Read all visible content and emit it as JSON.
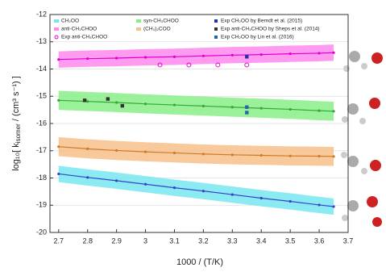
{
  "chart_data": {
    "type": "line",
    "x_label": "1000 / (T/K)",
    "y_label": [
      "log₁₀[ k",
      "isomer",
      " / (cm³ s⁻¹) ]"
    ],
    "xlim": [
      2.67,
      3.7
    ],
    "xticks": [
      2.7,
      2.8,
      2.9,
      3.0,
      3.1,
      3.2,
      3.3,
      3.4,
      3.5,
      3.6,
      3.7
    ],
    "ylim": [
      -20,
      -12
    ],
    "yticks": [
      -12,
      -13,
      -14,
      -15,
      -16,
      -17,
      -18,
      -19,
      -20
    ],
    "grid": true,
    "x": [
      2.7,
      2.8,
      2.9,
      3.0,
      3.1,
      3.2,
      3.3,
      3.4,
      3.5,
      3.6,
      3.65
    ],
    "series": [
      {
        "name": "CH₂OO",
        "color": "#3344cc",
        "band_color": "#77e6f0",
        "values": [
          -17.85,
          -17.98,
          -18.1,
          -18.23,
          -18.36,
          -18.48,
          -18.61,
          -18.74,
          -18.86,
          -18.99,
          -19.05
        ],
        "upper": [
          -17.55,
          -17.68,
          -17.8,
          -17.93,
          -18.06,
          -18.18,
          -18.31,
          -18.44,
          -18.56,
          -18.69,
          -18.75
        ],
        "lower": [
          -18.15,
          -18.28,
          -18.4,
          -18.53,
          -18.66,
          -18.78,
          -18.91,
          -19.04,
          -19.16,
          -19.29,
          -19.35
        ]
      },
      {
        "name": "anti-CH₃CHOO",
        "color": "#e000d0",
        "band_color": "#ff88ee",
        "values": [
          -13.65,
          -13.62,
          -13.6,
          -13.57,
          -13.55,
          -13.52,
          -13.49,
          -13.47,
          -13.44,
          -13.42,
          -13.4
        ],
        "upper": [
          -13.35,
          -13.32,
          -13.3,
          -13.27,
          -13.25,
          -13.22,
          -13.19,
          -13.17,
          -13.14,
          -13.12,
          -13.1
        ],
        "lower": [
          -13.95,
          -13.92,
          -13.9,
          -13.87,
          -13.85,
          -13.82,
          -13.79,
          -13.77,
          -13.74,
          -13.72,
          -13.7
        ]
      },
      {
        "name": "syn-CH₃CHOO",
        "color": "#33aa33",
        "band_color": "#88ee88",
        "values": [
          -15.15,
          -15.19,
          -15.23,
          -15.28,
          -15.32,
          -15.36,
          -15.4,
          -15.44,
          -15.48,
          -15.53,
          -15.55
        ],
        "upper": [
          -14.8,
          -14.84,
          -14.88,
          -14.93,
          -14.97,
          -15.01,
          -15.05,
          -15.09,
          -15.13,
          -15.18,
          -15.2
        ],
        "lower": [
          -15.5,
          -15.54,
          -15.58,
          -15.63,
          -15.67,
          -15.71,
          -15.75,
          -15.79,
          -15.83,
          -15.88,
          -15.9
        ]
      },
      {
        "name": "(CH₃)₂COO",
        "color": "#d07a28",
        "band_color": "#f7c08a",
        "values": [
          -16.85,
          -16.93,
          -16.99,
          -17.04,
          -17.08,
          -17.12,
          -17.15,
          -17.17,
          -17.19,
          -17.2,
          -17.21
        ],
        "upper": [
          -16.5,
          -16.58,
          -16.64,
          -16.69,
          -16.73,
          -16.77,
          -16.8,
          -16.82,
          -16.84,
          -16.85,
          -16.86
        ],
        "lower": [
          -17.2,
          -17.28,
          -17.34,
          -17.39,
          -17.43,
          -17.47,
          -17.5,
          -17.52,
          -17.54,
          -17.55,
          -17.56
        ]
      }
    ],
    "points": [
      {
        "name": "Exp anti-CH₃CHOO",
        "color": "#e000d0",
        "marker": "open-circle",
        "x": [
          3.05,
          3.15,
          3.25,
          3.35
        ],
        "values": [
          -13.85,
          -13.85,
          -13.85,
          -13.85
        ]
      },
      {
        "name": "Exp CH₂OO by Berndt et al. (2015)",
        "color": "#2233aa",
        "marker": "square",
        "x": [
          3.35
        ],
        "values": [
          -13.55
        ]
      },
      {
        "name": "Exp anti-CH₃CHOO by Sheps et al. (2014)",
        "color": "#333333",
        "marker": "square",
        "x": [
          2.79,
          2.87,
          2.92
        ],
        "values": [
          -15.15,
          -15.1,
          -15.35
        ]
      },
      {
        "name": "Exp CH₂OO by Lin et al. (2016)",
        "color": "#2266aa",
        "marker": "square",
        "x": [
          3.35,
          3.35
        ],
        "values": [
          -15.4,
          -15.6
        ]
      }
    ]
  }
}
